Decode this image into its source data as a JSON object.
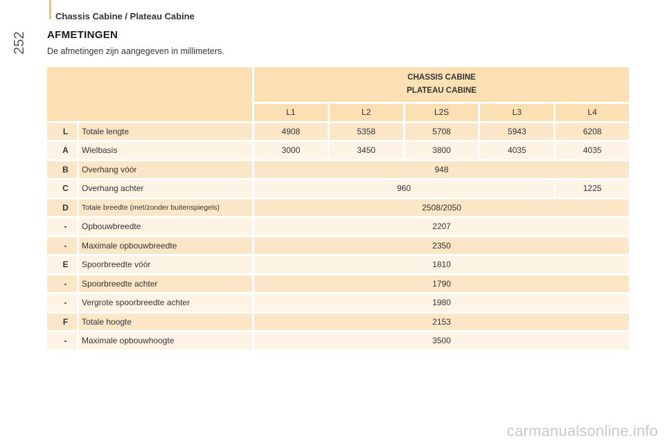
{
  "page": {
    "number": "252",
    "header": "Chassis Cabine / Plateau Cabine",
    "title": "AFMETINGEN",
    "intro": "De afmetingen zijn aangegeven in millimeters.",
    "watermark": "carmanualsonline.info"
  },
  "table": {
    "group_header": [
      "CHASSIS CABINE",
      "PLATEAU CABINE"
    ],
    "columns": [
      "L1",
      "L2",
      "L2S",
      "L3",
      "L4"
    ],
    "rows": [
      {
        "code": "L",
        "label": "Totale lengte",
        "values": [
          "4908",
          "5358",
          "5708",
          "5943",
          "6208"
        ]
      },
      {
        "code": "A",
        "label": "Wielbasis",
        "values": [
          "3000",
          "3450",
          "3800",
          "4035",
          "4035"
        ]
      },
      {
        "code": "B",
        "label": "Overhang vóór",
        "values": [
          "948"
        ]
      },
      {
        "code": "C",
        "label": "Overhang achter",
        "values": [
          "960",
          "1225"
        ]
      },
      {
        "code": "D",
        "label": "Totale breedte (met/zonder buitenspiegels)",
        "values": [
          "2508/2050"
        ]
      },
      {
        "code": "-",
        "label": "Opbouwbreedte",
        "values": [
          "2207"
        ]
      },
      {
        "code": "-",
        "label": "Maximale opbouwbreedte",
        "values": [
          "2350"
        ]
      },
      {
        "code": "E",
        "label": "Spoorbreedte vóór",
        "values": [
          "1810"
        ]
      },
      {
        "code": "-",
        "label": "Spoorbreedte achter",
        "values": [
          "1790"
        ]
      },
      {
        "code": "-",
        "label": "Vergrote spoorbreedte achter",
        "values": [
          "1980"
        ]
      },
      {
        "code": "F",
        "label": "Totale hoogte",
        "values": [
          "2153"
        ]
      },
      {
        "code": "-",
        "label": "Maximale opbouwhoogte",
        "values": [
          "3500"
        ]
      }
    ]
  }
}
